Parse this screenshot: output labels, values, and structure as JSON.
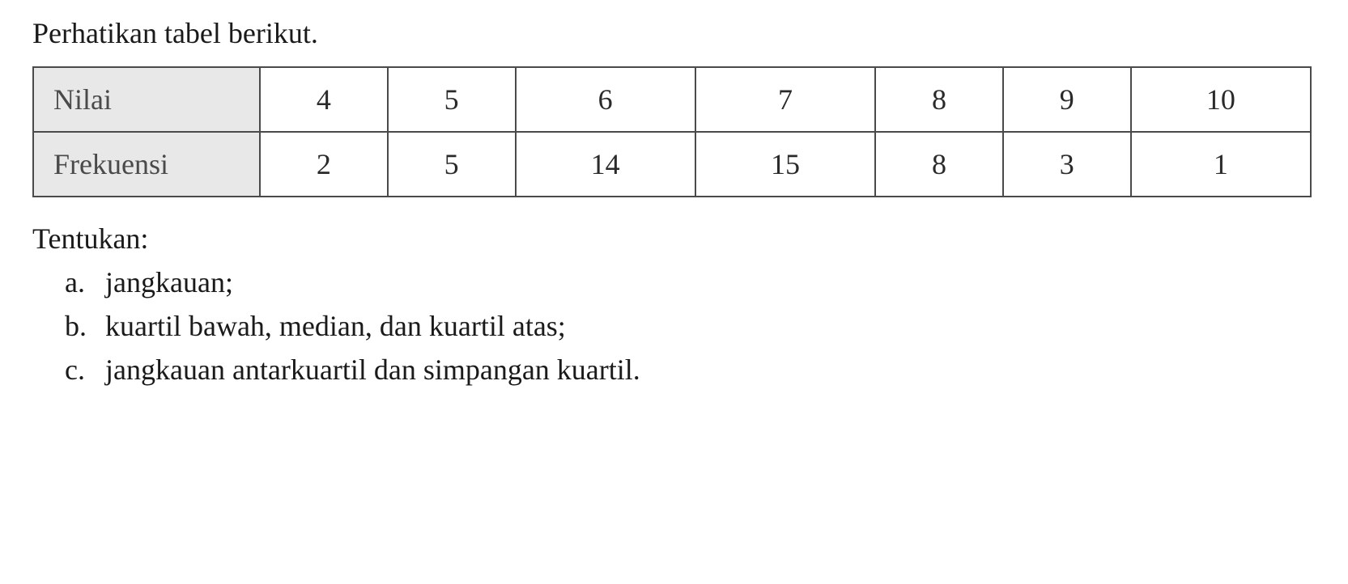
{
  "intro": "Perhatikan tabel berikut.",
  "table": {
    "rows": [
      {
        "header": "Nilai",
        "values": [
          "4",
          "5",
          "6",
          "7",
          "8",
          "9",
          "10"
        ]
      },
      {
        "header": "Frekuensi",
        "values": [
          "2",
          "5",
          "14",
          "15",
          "8",
          "3",
          "1"
        ]
      }
    ],
    "header_bg_color": "#e8e8e8",
    "border_color": "#4a4a4a",
    "cell_fontsize": 36,
    "header_text_color": "#4a4a4a",
    "cell_text_color": "#2a2a2a"
  },
  "tentukan": "Tentukan:",
  "questions": [
    {
      "label": "a.",
      "text": "jangkauan;"
    },
    {
      "label": "b.",
      "text": "kuartil bawah, median, dan kuartil atas;"
    },
    {
      "label": "c.",
      "text": "jangkauan antarkuartil dan simpangan kuartil."
    }
  ],
  "styling": {
    "font_family": "Times New Roman",
    "body_fontsize": 36,
    "background_color": "#ffffff",
    "text_color": "#1a1a1a"
  }
}
